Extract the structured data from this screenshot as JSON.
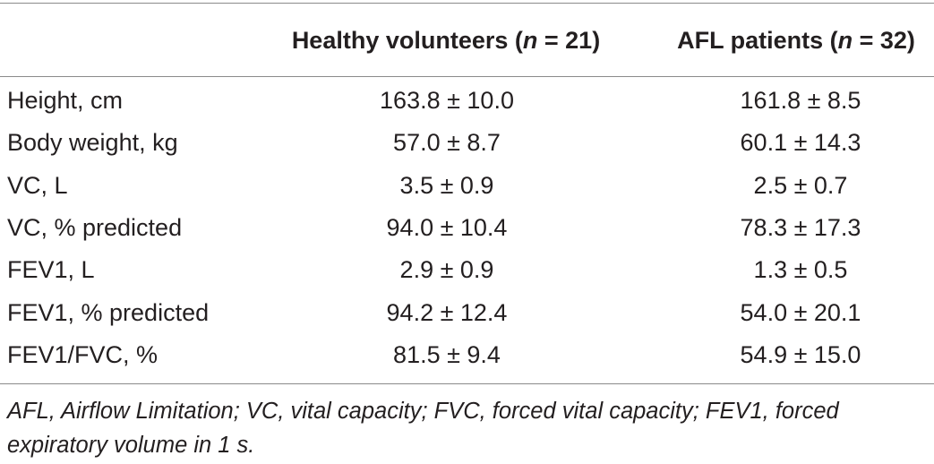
{
  "table": {
    "headers": {
      "col1_text": "Healthy volunteers (",
      "col1_n": "n",
      "col1_count": " = 21)",
      "col2_text": "AFL patients (",
      "col2_n": "n",
      "col2_count": " = 32)"
    },
    "rows": [
      {
        "label": "Height, cm",
        "healthy": "163.8 ± 10.0",
        "afl": "161.8 ± 8.5"
      },
      {
        "label": "Body weight, kg",
        "healthy": "57.0 ± 8.7",
        "afl": "60.1 ± 14.3"
      },
      {
        "label": "VC, L",
        "healthy": "3.5 ± 0.9",
        "afl": "2.5 ± 0.7"
      },
      {
        "label": "VC, % predicted",
        "healthy": "94.0 ± 10.4",
        "afl": "78.3 ± 17.3"
      },
      {
        "label": "FEV1, L",
        "healthy": "2.9 ± 0.9",
        "afl": "1.3 ± 0.5"
      },
      {
        "label": "FEV1, % predicted",
        "healthy": "94.2 ± 12.4",
        "afl": "54.0 ± 20.1"
      },
      {
        "label": "FEV1/FVC, %",
        "healthy": "81.5 ± 9.4",
        "afl": "54.9 ± 15.0"
      }
    ],
    "footnote": "AFL, Airflow Limitation; VC, vital capacity; FVC, forced vital capacity; FEV1, forced expiratory volume in 1 s."
  }
}
